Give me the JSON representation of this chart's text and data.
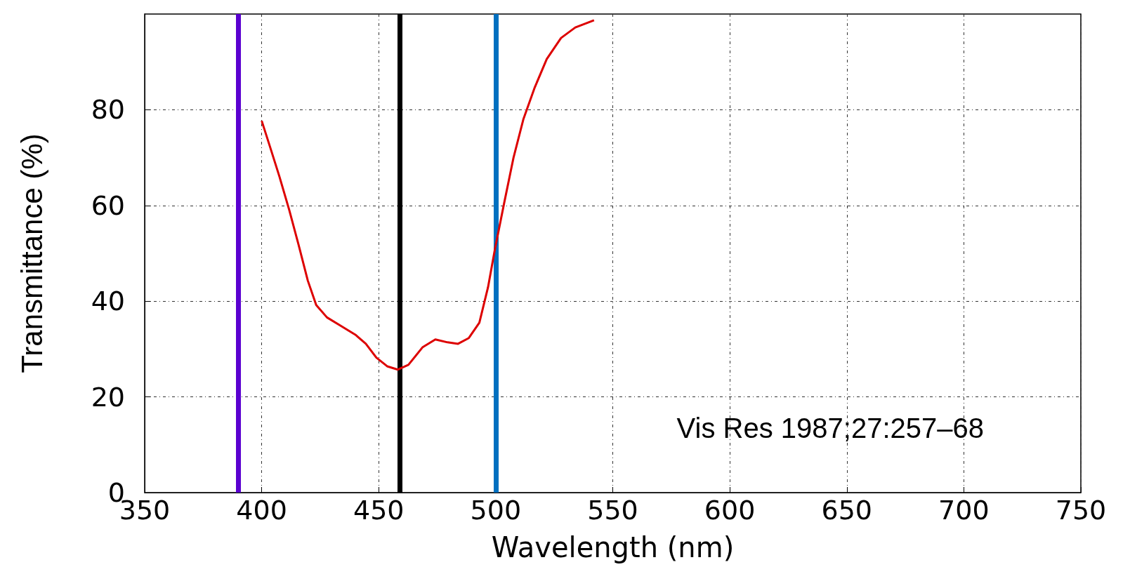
{
  "chart_data": {
    "type": "line",
    "xlabel": "Wavelength (nm)",
    "ylabel": "Transmittance (%)",
    "x": [
      400,
      403.6,
      407.6,
      411.8,
      415.8,
      419.7,
      423.3,
      427.9,
      434,
      440,
      444.5,
      449,
      453.6,
      458.2,
      462.7,
      468.8,
      474.2,
      479.4,
      483.9,
      488.5,
      493,
      496.7,
      499.7,
      503.6,
      507.6,
      511.8,
      516.7,
      521.8,
      527.9,
      534,
      542
    ],
    "series": [
      {
        "color": "#dd0000",
        "values": [
          77.7,
          72.2,
          66,
          59,
          51.7,
          44.3,
          39.2,
          36.6,
          34.8,
          33,
          31.1,
          28.2,
          26.4,
          25.7,
          26.7,
          30.4,
          32,
          31.4,
          31.1,
          32.3,
          35.5,
          42.9,
          51,
          60.5,
          70,
          78,
          84.7,
          90.6,
          95,
          97.2,
          98.7
        ]
      }
    ],
    "xlim": [
      350,
      750
    ],
    "xticks": [
      350,
      400,
      450,
      500,
      550,
      600,
      650,
      700,
      750
    ],
    "ylim": [
      0,
      100
    ],
    "yticks": [
      0,
      20,
      40,
      60,
      80
    ],
    "ref_lines": [
      {
        "axis": "x",
        "value": 390,
        "color": "#5a00d0"
      },
      {
        "axis": "x",
        "value": 459,
        "color": "#000000"
      },
      {
        "axis": "x",
        "value": 500,
        "color": "#0070c0"
      }
    ],
    "annotations": [
      "Vis Res 1987;27:257–68"
    ],
    "grid": true,
    "marker": "none",
    "line_style": "solid"
  }
}
